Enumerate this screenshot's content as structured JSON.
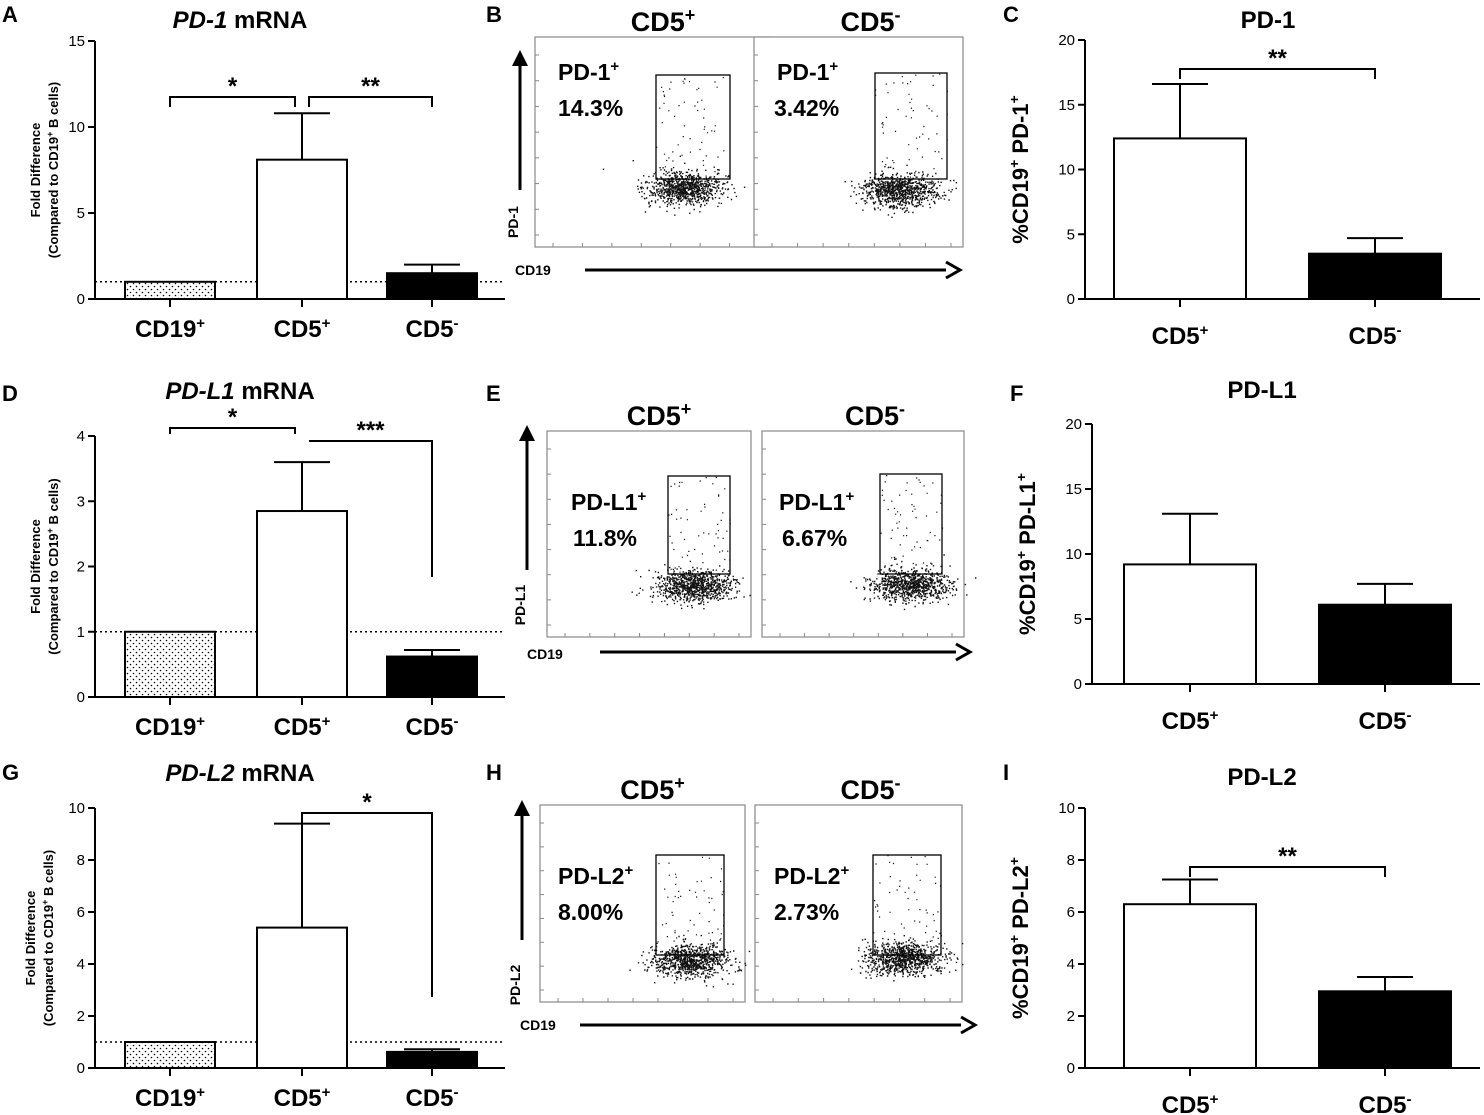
{
  "panels": {
    "A": {
      "letter": "A",
      "title_italic": "PD-1",
      "title_rest": " mRNA"
    },
    "B": {
      "letter": "B"
    },
    "C": {
      "letter": "C",
      "title": "PD-1"
    },
    "D": {
      "letter": "D",
      "title_italic": "PD-L1",
      "title_rest": " mRNA"
    },
    "E": {
      "letter": "E"
    },
    "F": {
      "letter": "F",
      "title": "PD-L1"
    },
    "G": {
      "letter": "G",
      "title_italic": "PD-L2",
      "title_rest": " mRNA"
    },
    "H": {
      "letter": "H"
    },
    "I": {
      "letter": "I",
      "title": "PD-L2"
    }
  },
  "labels": {
    "cd19": "CD19",
    "cd5": "CD5",
    "plus": "+",
    "minus": "-",
    "fold_line1": "Fold Difference",
    "fold_line2_a": "(Compared to CD19",
    "fold_line2_b": " B cells)",
    "pct_a": "%CD19",
    "pct_b": " PD-",
    "pct_c": "+"
  },
  "chart_data": [
    {
      "id": "A",
      "type": "bar",
      "title": "PD-1 mRNA",
      "ylabel": "Fold Difference (Compared to CD19+ B cells)",
      "categories": [
        "CD19+",
        "CD5+",
        "CD5-"
      ],
      "values": [
        1,
        8.1,
        1.5
      ],
      "errors": [
        0,
        2.7,
        0.5
      ],
      "ylim": [
        0,
        15
      ],
      "yticks": [
        0,
        5,
        10,
        15
      ],
      "reference_line": 1,
      "significance": [
        {
          "from": "CD19+",
          "to": "CD5+",
          "label": "*"
        },
        {
          "from": "CD5+",
          "to": "CD5-",
          "label": "**"
        }
      ]
    },
    {
      "id": "C",
      "type": "bar",
      "title": "PD-1",
      "ylabel": "%CD19+ PD-1+",
      "categories": [
        "CD5+",
        "CD5-"
      ],
      "values": [
        12.4,
        3.5
      ],
      "errors": [
        4.2,
        1.2
      ],
      "ylim": [
        0,
        20
      ],
      "yticks": [
        0,
        5,
        10,
        15,
        20
      ],
      "significance": [
        {
          "from": "CD5+",
          "to": "CD5-",
          "label": "**"
        }
      ]
    },
    {
      "id": "D",
      "type": "bar",
      "title": "PD-L1 mRNA",
      "ylabel": "Fold Difference (Compared to CD19+ B cells)",
      "categories": [
        "CD19+",
        "CD5+",
        "CD5-"
      ],
      "values": [
        1,
        2.85,
        0.62
      ],
      "errors": [
        0,
        0.75,
        0.1
      ],
      "ylim": [
        0,
        4
      ],
      "yticks": [
        0,
        1,
        2,
        3,
        4
      ],
      "reference_line": 1,
      "significance": [
        {
          "from": "CD19+",
          "to": "CD5+",
          "label": "*"
        },
        {
          "from": "CD5+",
          "to": "CD5-",
          "label": "***"
        }
      ]
    },
    {
      "id": "F",
      "type": "bar",
      "title": "PD-L1",
      "ylabel": "%CD19+ PD-L1+",
      "categories": [
        "CD5+",
        "CD5-"
      ],
      "values": [
        9.2,
        6.1
      ],
      "errors": [
        3.9,
        1.6
      ],
      "ylim": [
        0,
        20
      ],
      "yticks": [
        0,
        5,
        10,
        15,
        20
      ],
      "significance": []
    },
    {
      "id": "G",
      "type": "bar",
      "title": "PD-L2 mRNA",
      "ylabel": "Fold Difference (Compared to CD19+ B cells)",
      "categories": [
        "CD19+",
        "CD5+",
        "CD5-"
      ],
      "values": [
        1,
        5.4,
        0.62
      ],
      "errors": [
        0,
        4.0,
        0.1
      ],
      "ylim": [
        0,
        10
      ],
      "yticks": [
        0,
        2,
        4,
        6,
        8,
        10
      ],
      "reference_line": 1,
      "significance": [
        {
          "from": "CD5+",
          "to": "CD5-",
          "label": "*"
        }
      ]
    },
    {
      "id": "I",
      "type": "bar",
      "title": "PD-L2",
      "ylabel": "%CD19+ PD-L2+",
      "categories": [
        "CD5+",
        "CD5-"
      ],
      "values": [
        6.3,
        2.95
      ],
      "errors": [
        0.95,
        0.55
      ],
      "ylim": [
        0,
        10
      ],
      "yticks": [
        0,
        2,
        4,
        6,
        8,
        10
      ],
      "significance": [
        {
          "from": "CD5+",
          "to": "CD5-",
          "label": "**"
        }
      ]
    }
  ],
  "flow_data": [
    {
      "id": "B",
      "marker": "PD-1",
      "gate_label": "PD-1+",
      "x_axis": "CD19",
      "y_axis": "PD-1",
      "plots": [
        {
          "population": "CD5+",
          "percent": "14.3%"
        },
        {
          "population": "CD5-",
          "percent": "3.42%"
        }
      ]
    },
    {
      "id": "E",
      "marker": "PD-L1",
      "gate_label": "PD-L1+",
      "x_axis": "CD19",
      "y_axis": "PD-L1",
      "plots": [
        {
          "population": "CD5+",
          "percent": "11.8%"
        },
        {
          "population": "CD5-",
          "percent": "6.67%"
        }
      ]
    },
    {
      "id": "H",
      "marker": "PD-L2",
      "gate_label": "PD-L2+",
      "x_axis": "CD19",
      "y_axis": "PD-L2",
      "plots": [
        {
          "population": "CD5+",
          "percent": "8.00%"
        },
        {
          "population": "CD5-",
          "percent": "2.73%"
        }
      ]
    }
  ]
}
